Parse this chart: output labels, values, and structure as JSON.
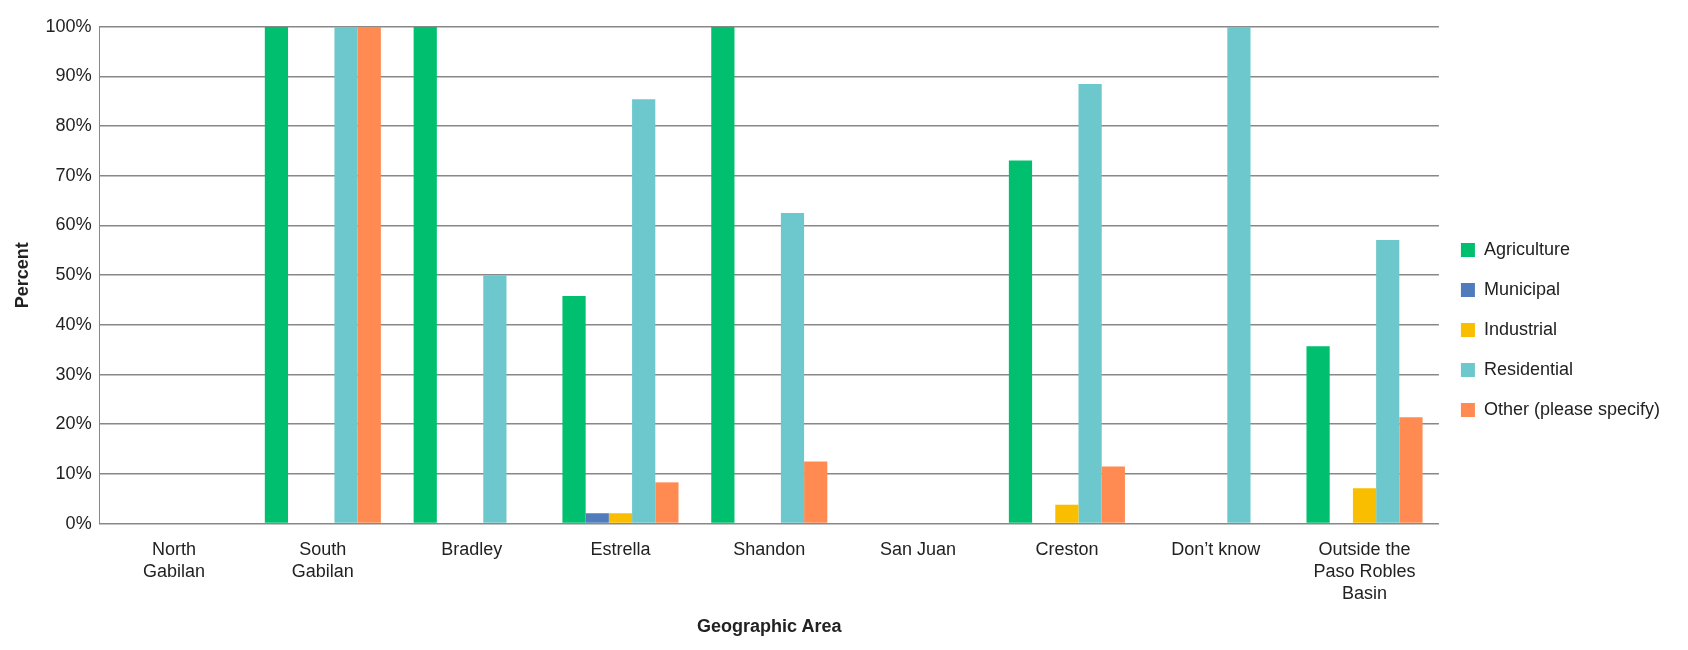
{
  "chart_data": {
    "type": "bar",
    "xlabel": "Geographic Area",
    "ylabel": "Percent",
    "categories": [
      "North Gabilan",
      "South Gabilan",
      "Bradley",
      "Estrella",
      "Shandon",
      "San Juan",
      "Creston",
      "Don’t know",
      "Outside the Paso Robles Basin"
    ],
    "series": [
      {
        "name": "Agriculture",
        "color": "#00bf6f",
        "values": [
          0,
          100,
          100,
          45.8,
          100,
          0,
          73.1,
          0,
          35.7
        ]
      },
      {
        "name": "Municipal",
        "color": "#507cbb",
        "values": [
          0,
          0,
          0,
          2.1,
          0,
          0,
          0,
          0,
          0
        ]
      },
      {
        "name": "Industrial",
        "color": "#f9be00",
        "values": [
          0,
          0,
          0,
          2.1,
          0,
          0,
          3.8,
          0,
          7.1
        ]
      },
      {
        "name": "Residential",
        "color": "#6cc8cc",
        "values": [
          0,
          100,
          50,
          85.4,
          62.5,
          0,
          88.5,
          100,
          57.1
        ]
      },
      {
        "name": "Other (please specify)",
        "color": "#ff8b52",
        "values": [
          0,
          100,
          0,
          8.3,
          12.5,
          0,
          11.5,
          0,
          21.4
        ]
      }
    ],
    "ylim": [
      0,
      100
    ],
    "yticks": [
      {
        "value": 0,
        "label": "0%"
      },
      {
        "value": 10,
        "label": "10%"
      },
      {
        "value": 20,
        "label": "20%"
      },
      {
        "value": 30,
        "label": "30%"
      },
      {
        "value": 40,
        "label": "40%"
      },
      {
        "value": 50,
        "label": "50%"
      },
      {
        "value": 60,
        "label": "60%"
      },
      {
        "value": 70,
        "label": "70%"
      },
      {
        "value": 80,
        "label": "80%"
      },
      {
        "value": 90,
        "label": "90%"
      },
      {
        "value": 100,
        "label": "100%"
      }
    ],
    "grid": "y",
    "legend": "right"
  }
}
